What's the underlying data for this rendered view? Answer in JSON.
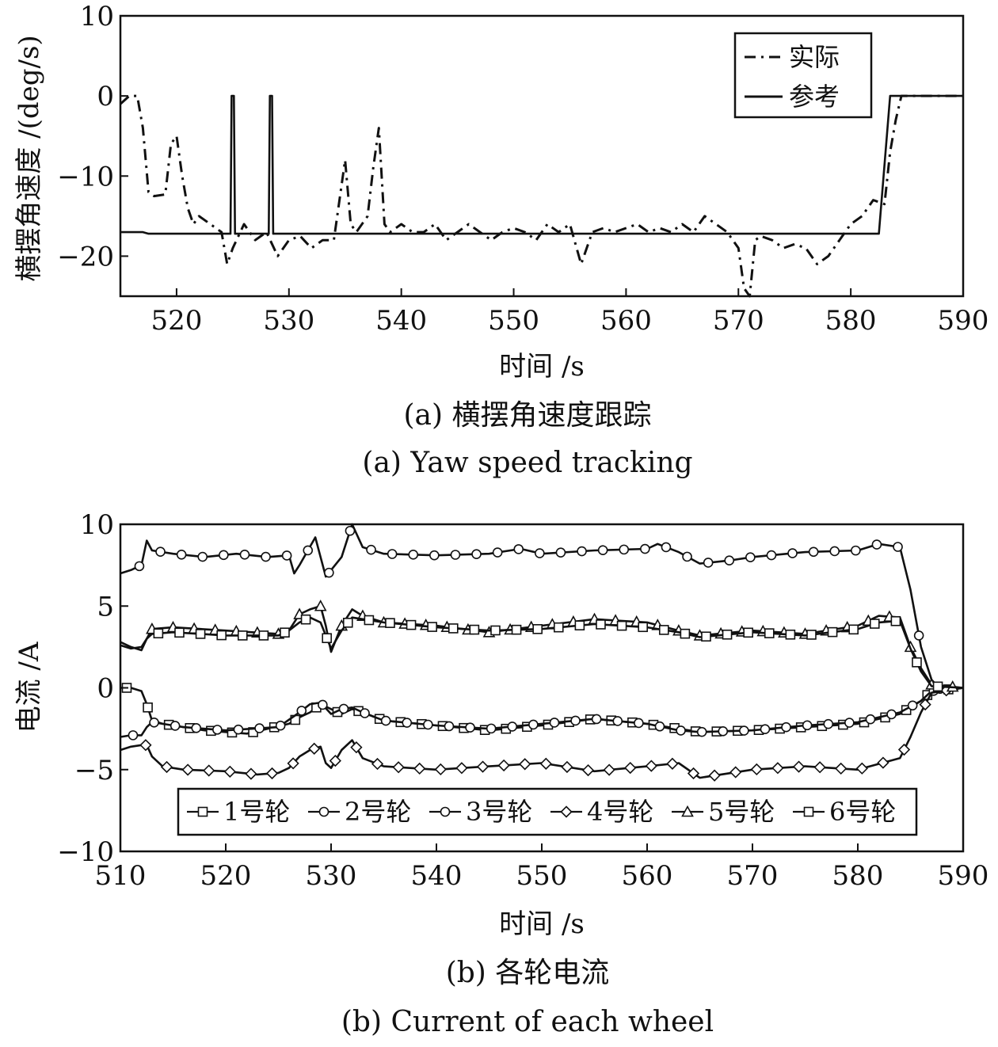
{
  "chart_data": [
    {
      "type": "line",
      "caption_cn": "(a) 横摆角速度跟踪",
      "caption_en": "(a) Yaw speed tracking",
      "xlabel": "时间 /s",
      "ylabel": "横摆角速度 /(deg/s)",
      "xlim": [
        515,
        590
      ],
      "ylim": [
        -25,
        10
      ],
      "xticks": [
        520,
        530,
        540,
        550,
        560,
        570,
        580,
        590
      ],
      "yticks": [
        10,
        0,
        -10,
        -20
      ],
      "legend_position": "top-right",
      "grid": false,
      "series": [
        {
          "name": "实际",
          "style": "dashdot",
          "x": [
            515,
            515.8,
            516.5,
            517,
            517.5,
            518,
            519,
            519.5,
            520,
            520.5,
            521,
            521.5,
            522,
            523,
            524,
            524.5,
            525,
            525.5,
            526,
            527,
            528,
            529,
            530,
            531,
            532,
            533,
            534,
            535,
            535.5,
            536,
            537,
            537.5,
            538,
            538.5,
            539,
            540,
            541,
            542,
            543,
            544,
            545,
            546,
            547,
            548,
            549,
            550,
            551,
            552,
            553,
            554,
            555,
            556,
            557,
            558,
            559,
            560,
            561,
            562,
            563,
            564,
            565,
            566,
            567,
            568,
            569,
            570,
            570.5,
            571,
            571.5,
            572,
            573,
            574,
            575,
            576,
            577,
            578,
            579,
            580,
            581,
            582,
            583,
            583.5,
            584,
            584.5,
            585,
            586,
            590
          ],
          "y": [
            -1,
            0,
            0,
            -4,
            -12,
            -12.5,
            -12.3,
            -6,
            -5,
            -10,
            -14,
            -16,
            -15,
            -16,
            -17,
            -21,
            -19,
            -17.5,
            -16,
            -18,
            -17,
            -20,
            -18,
            -17.5,
            -19,
            -18,
            -18,
            -8,
            -16,
            -17,
            -15,
            -9,
            -4,
            -16,
            -17,
            -16,
            -17,
            -17,
            -16,
            -18,
            -17,
            -16,
            -17,
            -18,
            -17,
            -16.5,
            -17,
            -18,
            -16,
            -17,
            -16,
            -21,
            -17,
            -16.5,
            -17,
            -16.5,
            -16,
            -17,
            -16.5,
            -17,
            -16,
            -17,
            -15,
            -16,
            -17,
            -19,
            -24,
            -25,
            -18,
            -17.5,
            -18,
            -19,
            -18.5,
            -19,
            -21,
            -20,
            -18,
            -16,
            -15,
            -13,
            -13.5,
            -7,
            -3,
            0,
            0,
            0,
            0
          ]
        },
        {
          "name": "参考",
          "style": "solid",
          "x": [
            515,
            517,
            517.5,
            524.8,
            524.9,
            525.1,
            525.2,
            528.2,
            528.3,
            528.5,
            528.6,
            582.5,
            583.5,
            590
          ],
          "y": [
            -17,
            -17,
            -17.2,
            -17.2,
            0,
            0,
            -17.2,
            -17.2,
            0,
            0,
            -17.2,
            -17.2,
            0,
            0
          ]
        }
      ]
    },
    {
      "type": "line",
      "caption_cn": "(b) 各轮电流",
      "caption_en": "(b) Current of each wheel",
      "xlabel": "时间 /s",
      "ylabel": "电流 /A",
      "xlim": [
        510,
        590
      ],
      "ylim": [
        -10,
        10
      ],
      "xticks": [
        510,
        520,
        530,
        540,
        550,
        560,
        570,
        580,
        590
      ],
      "yticks": [
        10,
        5,
        0,
        -5,
        -10
      ],
      "legend_position": "bottom-center",
      "grid": false,
      "series": [
        {
          "name": "1号轮",
          "marker": "square",
          "x": [
            510,
            511,
            512,
            512.5,
            513,
            514,
            516,
            518,
            520,
            522,
            524,
            526,
            527,
            528,
            529,
            530,
            531,
            532,
            533,
            535,
            540,
            545,
            550,
            555,
            560,
            563,
            565,
            570,
            575,
            580,
            584,
            586,
            587,
            590
          ],
          "y": [
            0,
            0,
            -0.2,
            -1,
            -2,
            -2.2,
            -2.4,
            -2.6,
            -2.7,
            -2.8,
            -2.5,
            -2.2,
            -1.8,
            -1.5,
            -1,
            -1.3,
            -1.6,
            -1.3,
            -1.5,
            -2,
            -2.3,
            -2.6,
            -2.3,
            -1.9,
            -2.2,
            -2.5,
            -2.7,
            -2.6,
            -2.4,
            -2.2,
            -1.6,
            -0.8,
            -0.2,
            0
          ]
        },
        {
          "name": "2号轮",
          "marker": "circle",
          "x": [
            510,
            511,
            512,
            512.5,
            513,
            514,
            516,
            520,
            525,
            527,
            528,
            529,
            530,
            531,
            532,
            533,
            535,
            540,
            545,
            550,
            555,
            560,
            563,
            565,
            570,
            575,
            580,
            584,
            586,
            587,
            590
          ],
          "y": [
            -3,
            -2.9,
            -2.9,
            -2.4,
            -2.1,
            -2.2,
            -2.4,
            -2.6,
            -2.4,
            -1.5,
            -1.0,
            -0.9,
            -1.6,
            -1.3,
            -1.2,
            -1.5,
            -2.0,
            -2.3,
            -2.5,
            -2.2,
            -1.9,
            -2.2,
            -2.6,
            -2.7,
            -2.6,
            -2.3,
            -2.1,
            -1.5,
            -0.8,
            -0.2,
            0
          ]
        },
        {
          "name": "3号轮",
          "marker": "circle",
          "x": [
            510,
            511,
            512,
            512.5,
            513,
            515,
            518,
            521,
            524,
            526,
            526.5,
            527,
            528.5,
            529,
            529.5,
            530,
            531,
            532,
            533,
            535,
            540,
            545,
            548,
            550,
            555,
            560,
            561,
            563,
            565,
            568,
            570,
            575,
            580,
            582,
            584,
            585,
            586,
            587,
            588,
            590
          ],
          "y": [
            7,
            7.2,
            7.5,
            9,
            8.4,
            8.2,
            8.0,
            8.2,
            8.0,
            8.1,
            7,
            7.5,
            9.2,
            8,
            6.8,
            7.2,
            8,
            10,
            8.6,
            8.2,
            8.1,
            8.2,
            8.5,
            8.2,
            8.4,
            8.5,
            8.8,
            8.3,
            7.6,
            7.8,
            8.0,
            8.3,
            8.4,
            8.8,
            8.6,
            6,
            2.5,
            0.5,
            -0.2,
            0
          ]
        },
        {
          "name": "4号轮",
          "marker": "diamond",
          "x": [
            510,
            511,
            512,
            512.5,
            513,
            514,
            516,
            520,
            523,
            525,
            526,
            527,
            528,
            529,
            529.5,
            530,
            531,
            532,
            533,
            535,
            540,
            545,
            550,
            555,
            560,
            563,
            565,
            570,
            575,
            580,
            584,
            585,
            586,
            587,
            590
          ],
          "y": [
            -3.8,
            -3.6,
            -3.5,
            -3.5,
            -4.2,
            -4.8,
            -5,
            -5.1,
            -5.3,
            -5.2,
            -4.9,
            -4.2,
            -3.8,
            -3.6,
            -4.6,
            -4.9,
            -3.8,
            -3.2,
            -4.3,
            -4.8,
            -5.0,
            -4.8,
            -4.6,
            -5.1,
            -4.8,
            -4.6,
            -5.5,
            -5.0,
            -4.8,
            -5.0,
            -4.3,
            -3.0,
            -1.5,
            -0.3,
            0
          ]
        },
        {
          "name": "5号轮",
          "marker": "triangle",
          "x": [
            510,
            511,
            512,
            512.5,
            513,
            515,
            520,
            525,
            526,
            527,
            528,
            529,
            529.5,
            530,
            531,
            532,
            533,
            535,
            540,
            545,
            550,
            555,
            560,
            563,
            565,
            570,
            575,
            580,
            582,
            584,
            585,
            586,
            587,
            590
          ],
          "y": [
            2.8,
            2.5,
            2.3,
            3.0,
            3.6,
            3.7,
            3.5,
            3.3,
            3.5,
            4.5,
            4.8,
            5.0,
            3.8,
            2.2,
            3.8,
            4.8,
            4.4,
            4.0,
            3.8,
            3.4,
            3.8,
            4.2,
            4.0,
            3.5,
            3.2,
            3.5,
            3.3,
            3.8,
            4.4,
            4.3,
            2.5,
            1.2,
            0.2,
            0
          ]
        },
        {
          "name": "6号轮",
          "marker": "square",
          "x": [
            510,
            511,
            512,
            512.5,
            513,
            515,
            520,
            525,
            526,
            527,
            528,
            529,
            529.5,
            530,
            531,
            532,
            533,
            535,
            540,
            545,
            550,
            555,
            560,
            563,
            565,
            570,
            575,
            580,
            582,
            584,
            585,
            586,
            587,
            590
          ],
          "y": [
            2.6,
            2.4,
            2.5,
            3.0,
            3.3,
            3.4,
            3.2,
            3.2,
            3.5,
            4.0,
            4.3,
            4.0,
            3.2,
            2.4,
            3.5,
            4.3,
            4.2,
            4.0,
            3.7,
            3.5,
            3.6,
            3.9,
            3.7,
            3.4,
            3.1,
            3.4,
            3.2,
            3.6,
            4.0,
            4.1,
            2.4,
            1.0,
            0.1,
            0
          ]
        }
      ]
    }
  ]
}
